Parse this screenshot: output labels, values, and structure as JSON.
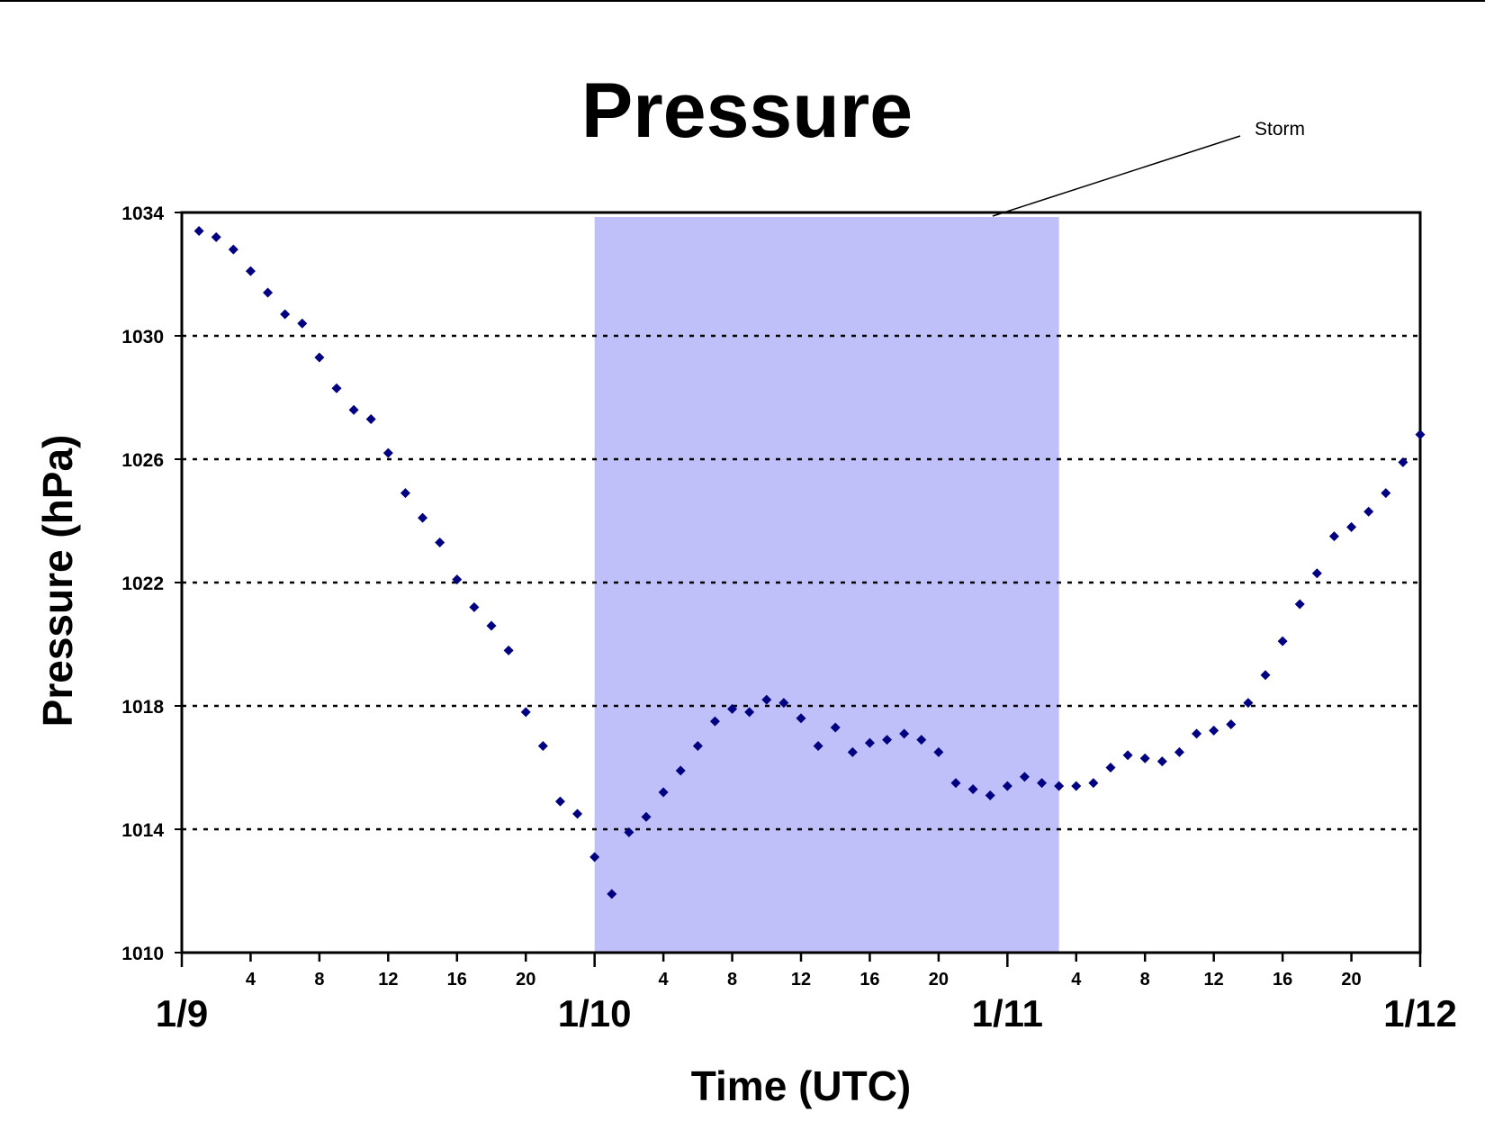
{
  "chart_data": {
    "type": "scatter",
    "title": "Pressure",
    "xlabel": "Time (UTC)",
    "ylabel": "Pressure (hPa)",
    "x_unit": "hours UTC from 1/9 00:00",
    "xlim": [
      0,
      72
    ],
    "ylim": [
      1010,
      1034
    ],
    "yticks": [
      1010,
      1014,
      1018,
      1022,
      1026,
      1030,
      1034
    ],
    "x_hour_ticks": [
      {
        "x": 4,
        "label": "4"
      },
      {
        "x": 8,
        "label": "8"
      },
      {
        "x": 12,
        "label": "12"
      },
      {
        "x": 16,
        "label": "16"
      },
      {
        "x": 20,
        "label": "20"
      },
      {
        "x": 28,
        "label": "4"
      },
      {
        "x": 32,
        "label": "8"
      },
      {
        "x": 36,
        "label": "12"
      },
      {
        "x": 40,
        "label": "16"
      },
      {
        "x": 44,
        "label": "20"
      },
      {
        "x": 52,
        "label": "4"
      },
      {
        "x": 56,
        "label": "8"
      },
      {
        "x": 60,
        "label": "12"
      },
      {
        "x": 64,
        "label": "16"
      },
      {
        "x": 68,
        "label": "20"
      }
    ],
    "x_date_ticks": [
      {
        "x": 0,
        "label": "1/9"
      },
      {
        "x": 24,
        "label": "1/10"
      },
      {
        "x": 48,
        "label": "1/11"
      },
      {
        "x": 72,
        "label": "1/12"
      }
    ],
    "grid": "horizontal dotted",
    "shaded_region": {
      "label": "Storm",
      "x_start": 24,
      "x_end": 51,
      "color": "#bfbffa"
    },
    "annotation": {
      "text": "Storm"
    },
    "marker_color": "#000080",
    "series": [
      {
        "x": [
          1,
          2,
          3,
          4,
          5,
          6,
          7,
          8,
          9,
          10,
          11,
          12,
          13,
          14,
          15,
          16,
          17,
          18,
          19,
          20,
          21,
          22,
          23,
          24,
          25,
          26,
          27,
          28,
          29,
          30,
          31,
          32,
          33,
          34,
          35,
          36,
          37,
          38,
          39,
          40,
          41,
          42,
          43,
          44,
          45,
          46,
          47,
          48,
          49,
          50,
          51,
          52,
          53,
          54,
          55,
          56,
          57,
          58,
          59,
          60,
          61,
          62,
          63,
          64,
          65,
          66,
          67,
          68,
          69,
          70,
          71,
          72
        ],
        "values": [
          1033.4,
          1033.2,
          1032.8,
          1032.1,
          1031.4,
          1030.7,
          1030.4,
          1029.3,
          1028.3,
          1027.6,
          1027.3,
          1026.2,
          1024.9,
          1024.1,
          1023.3,
          1022.1,
          1021.2,
          1020.6,
          1019.8,
          1017.8,
          1016.7,
          1014.9,
          1014.5,
          1013.1,
          1011.9,
          1013.9,
          1014.4,
          1015.2,
          1015.9,
          1016.7,
          1017.5,
          1017.9,
          1017.8,
          1018.2,
          1018.1,
          1017.6,
          1016.7,
          1017.3,
          1016.5,
          1016.8,
          1016.9,
          1017.1,
          1016.9,
          1016.5,
          1015.5,
          1015.3,
          1015.1,
          1015.4,
          1015.7,
          1015.5,
          1015.4,
          1015.4,
          1015.5,
          1016,
          1016.4,
          1016.3,
          1016.2,
          1016.5,
          1017.1,
          1017.2,
          1017.4,
          1018.1,
          1019,
          1020.1,
          1021.3,
          1022.3,
          1023.5,
          1023.8,
          1024.3,
          1024.9,
          1025.9,
          1026.8
        ]
      }
    ]
  }
}
